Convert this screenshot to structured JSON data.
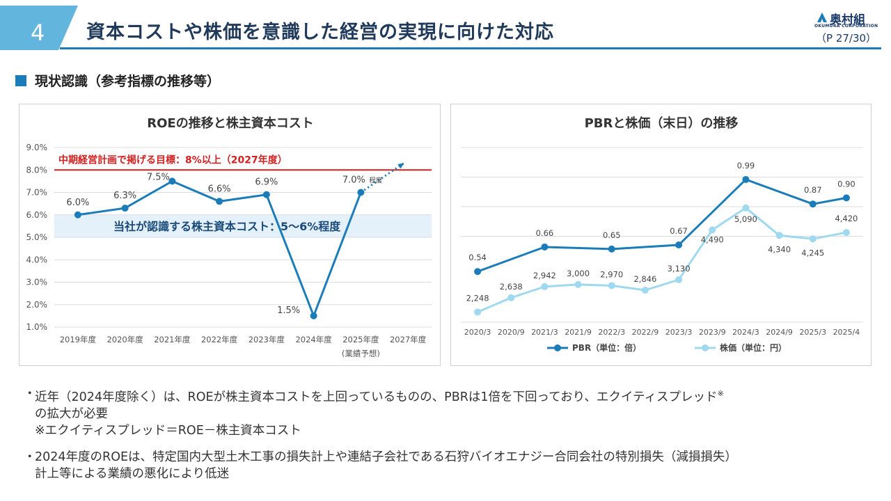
{
  "header": {
    "section_number": "4",
    "title": "資本コストや株価を意識した経営の実現に向けた対応",
    "logo_text": "奥村組",
    "logo_sub": "OKUMURA CORPORATION",
    "page_no": "（P 27/30）"
  },
  "section": {
    "label": "現状認識（参考指標の推移等）"
  },
  "colors": {
    "accent": "#1a7cb8",
    "light": "#9ed9ef",
    "target_red": "#d42020",
    "band": "#e4f1fa"
  },
  "chart_data": [
    {
      "type": "line",
      "title": "ROEの推移と株主資本コスト",
      "categories": [
        "2019年度",
        "2020年度",
        "2021年度",
        "2022年度",
        "2023年度",
        "2024年度",
        "2025年度",
        "2027年度"
      ],
      "category_sublabels": [
        "",
        "",
        "",
        "",
        "",
        "",
        "(業績予想)",
        ""
      ],
      "series": [
        {
          "values": [
            6.0,
            6.3,
            7.5,
            6.6,
            6.9,
            1.5,
            7.0,
            null
          ],
          "labels": [
            "6.0%",
            "6.3%",
            "7.5%",
            "6.6%",
            "6.9%",
            "1.5%",
            "7.0%",
            ""
          ]
        }
      ],
      "label_suffix_2025": "程度",
      "ylim": [
        1.0,
        9.0
      ],
      "yticks": [
        "1.0%",
        "2.0%",
        "3.0%",
        "4.0%",
        "5.0%",
        "6.0%",
        "7.0%",
        "8.0%",
        "9.0%"
      ],
      "target_line": {
        "value": 8.0,
        "label": "中期経営計画で掲げる目標：8%以上（2027年度）"
      },
      "cost_band": {
        "range": [
          5.0,
          6.0
        ],
        "label": "当社が認識する株主資本コスト：5〜6%程度"
      },
      "projection": {
        "from": 7.0,
        "to": 8.3
      },
      "grid": true
    },
    {
      "type": "line",
      "title": "PBRと株価（末日）の推移",
      "categories": [
        "2020/3",
        "2020/9",
        "2021/3",
        "2021/9",
        "2022/3",
        "2022/9",
        "2023/3",
        "2023/9",
        "2024/3",
        "2024/9",
        "2025/3",
        "2025/4"
      ],
      "series": [
        {
          "name": "PBR（単位：倍）",
          "values": [
            0.54,
            null,
            0.66,
            null,
            0.65,
            null,
            0.67,
            null,
            0.99,
            null,
            0.87,
            0.9
          ],
          "labels": [
            "0.54",
            "",
            "0.66",
            "",
            "0.65",
            "",
            "0.67",
            "",
            "0.99",
            "",
            "0.87",
            "0.90"
          ]
        },
        {
          "name": "株価（単位：円）",
          "values": [
            2248,
            2638,
            2942,
            3000,
            2970,
            2846,
            3130,
            4490,
            5090,
            4340,
            4245,
            4420
          ],
          "labels": [
            "2,248",
            "2,638",
            "2,942",
            "3,000",
            "2,970",
            "2,846",
            "3,130",
            "4,490",
            "5,090",
            "4,340",
            "4,245",
            "4,420"
          ]
        }
      ],
      "legend": "bottom",
      "grid": true
    }
  ],
  "notes": {
    "b1_line1": "近年（2024年度除く）は、ROEが株主資本コストを上回っているものの、PBRは1倍を下回っており、エクイティスプレッド",
    "b1_sup": "※",
    "b1_line2": "の拡大が必要",
    "b1_line3": "※エクイティスプレッド＝ROE－株主資本コスト",
    "b2_line1": "2024年度のROEは、特定国内大型土木工事の損失計上や連結子会社である石狩バイオエナジー合同会社の特別損失（減損損失）",
    "b2_line2": "計上等による業績の悪化により低迷",
    "dot": "・"
  }
}
